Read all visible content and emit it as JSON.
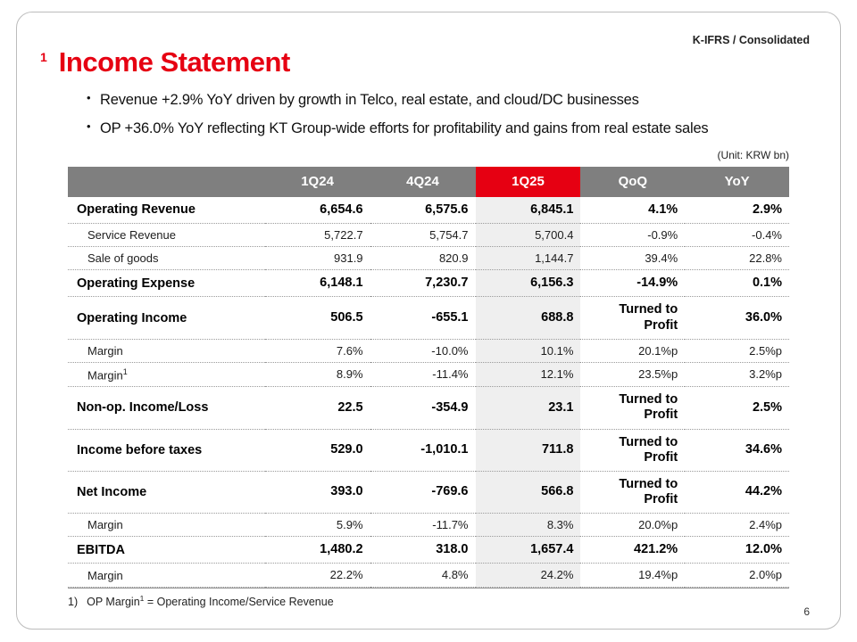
{
  "page": {
    "corner_label": "K-IFRS / Consolidated",
    "title_sup": "1",
    "title": "Income Statement",
    "bullets": [
      "Revenue +2.9% YoY driven by growth in Telco, real estate, and cloud/DC businesses",
      "OP +36.0% YoY reflecting KT Group-wide efforts for profitability and gains from real estate sales"
    ],
    "unit_label": "(Unit: KRW bn)",
    "footnote": {
      "prefix": "1)",
      "text": "OP Margin",
      "sup": "1",
      "rest": " = Operating Income/Service Revenue"
    },
    "page_number": "6"
  },
  "colors": {
    "accent_red": "#e60012",
    "header_gray": "#7f7f7f",
    "highlight_bg": "#efefef"
  },
  "table": {
    "columns": [
      "",
      "1Q24",
      "4Q24",
      "1Q25",
      "QoQ",
      "YoY"
    ],
    "highlight_column": "1Q25",
    "rows": [
      {
        "label": "Operating Revenue",
        "bold": true,
        "values": [
          "6,654.6",
          "6,575.6",
          "6,845.1",
          "4.1%",
          "2.9%"
        ]
      },
      {
        "label": "Service Revenue",
        "bold": false,
        "values": [
          "5,722.7",
          "5,754.7",
          "5,700.4",
          "-0.9%",
          "-0.4%"
        ]
      },
      {
        "label": "Sale of goods",
        "bold": false,
        "values": [
          "931.9",
          "820.9",
          "1,144.7",
          "39.4%",
          "22.8%"
        ]
      },
      {
        "label": "Operating Expense",
        "bold": true,
        "values": [
          "6,148.1",
          "7,230.7",
          "6,156.3",
          "-14.9%",
          "0.1%"
        ]
      },
      {
        "label": "Operating Income",
        "bold": true,
        "values": [
          "506.5",
          "-655.1",
          "688.8",
          "Turned to\nProfit",
          "36.0%"
        ]
      },
      {
        "label": "Margin",
        "bold": false,
        "values": [
          "7.6%",
          "-10.0%",
          "10.1%",
          "20.1%p",
          "2.5%p"
        ]
      },
      {
        "label": "Margin",
        "label_sup": "1",
        "bold": false,
        "values": [
          "8.9%",
          "-11.4%",
          "12.1%",
          "23.5%p",
          "3.2%p"
        ]
      },
      {
        "label": "Non-op. Income/Loss",
        "bold": true,
        "values": [
          "22.5",
          "-354.9",
          "23.1",
          "Turned to\nProfit",
          "2.5%"
        ]
      },
      {
        "label": "Income before taxes",
        "bold": true,
        "values": [
          "529.0",
          "-1,010.1",
          "711.8",
          "Turned to\nProfit",
          "34.6%"
        ]
      },
      {
        "label": "Net Income",
        "bold": true,
        "values": [
          "393.0",
          "-769.6",
          "566.8",
          "Turned to\nProfit",
          "44.2%"
        ]
      },
      {
        "label": "Margin",
        "bold": false,
        "values": [
          "5.9%",
          "-11.7%",
          "8.3%",
          "20.0%p",
          "2.4%p"
        ]
      },
      {
        "label": "EBITDA",
        "bold": true,
        "values": [
          "1,480.2",
          "318.0",
          "1,657.4",
          "421.2%",
          "12.0%"
        ]
      },
      {
        "label": "Margin",
        "bold": false,
        "values": [
          "22.2%",
          "4.8%",
          "24.2%",
          "19.4%p",
          "2.0%p"
        ]
      }
    ]
  }
}
